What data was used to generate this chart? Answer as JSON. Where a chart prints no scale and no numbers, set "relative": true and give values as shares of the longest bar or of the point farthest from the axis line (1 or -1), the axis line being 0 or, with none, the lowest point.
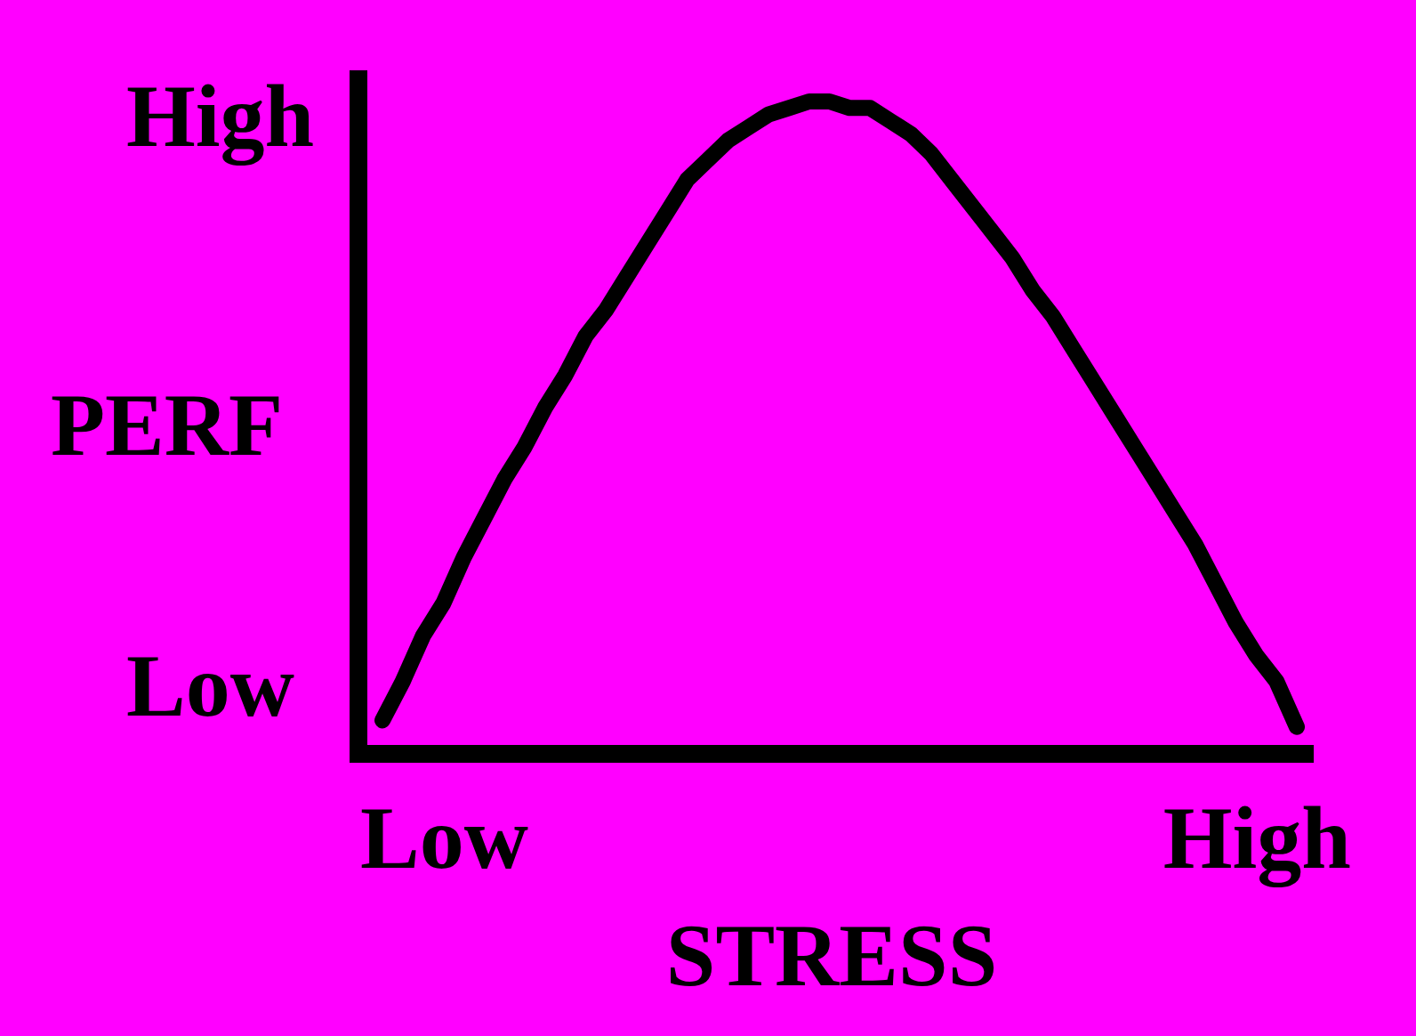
{
  "chart_data": {
    "type": "line",
    "relative": true,
    "xlabel": "STRESS",
    "ylabel": "PERF",
    "annotations": [
      "High",
      "Low"
    ],
    "categories": [
      null,
      null,
      null,
      "Low",
      null,
      null,
      null,
      null,
      null,
      null,
      null,
      null,
      null,
      null,
      null,
      null,
      null,
      null,
      null,
      null,
      null,
      null,
      null,
      null,
      null,
      null,
      null,
      null,
      null,
      null,
      null,
      null,
      null,
      null,
      null,
      null,
      null,
      null,
      null,
      null,
      null,
      null,
      null,
      "High",
      null,
      null
    ],
    "line_style": "solid",
    "series": [
      {
        "color": "#000000",
        "values": [
          0.05,
          0.11,
          0.18,
          0.23,
          0.3,
          0.36,
          0.42,
          0.47,
          0.53,
          0.58,
          0.64,
          0.68,
          0.73,
          0.78,
          0.83,
          0.88,
          0.91,
          0.94,
          0.96,
          0.98,
          0.99,
          1.0,
          1.0,
          0.99,
          0.99,
          0.97,
          0.95,
          0.92,
          0.88,
          0.84,
          0.8,
          0.76,
          0.71,
          0.67,
          0.62,
          0.57,
          0.52,
          0.47,
          0.42,
          0.37,
          0.32,
          0.26,
          0.2,
          0.15,
          0.11,
          0.04
        ]
      }
    ]
  }
}
